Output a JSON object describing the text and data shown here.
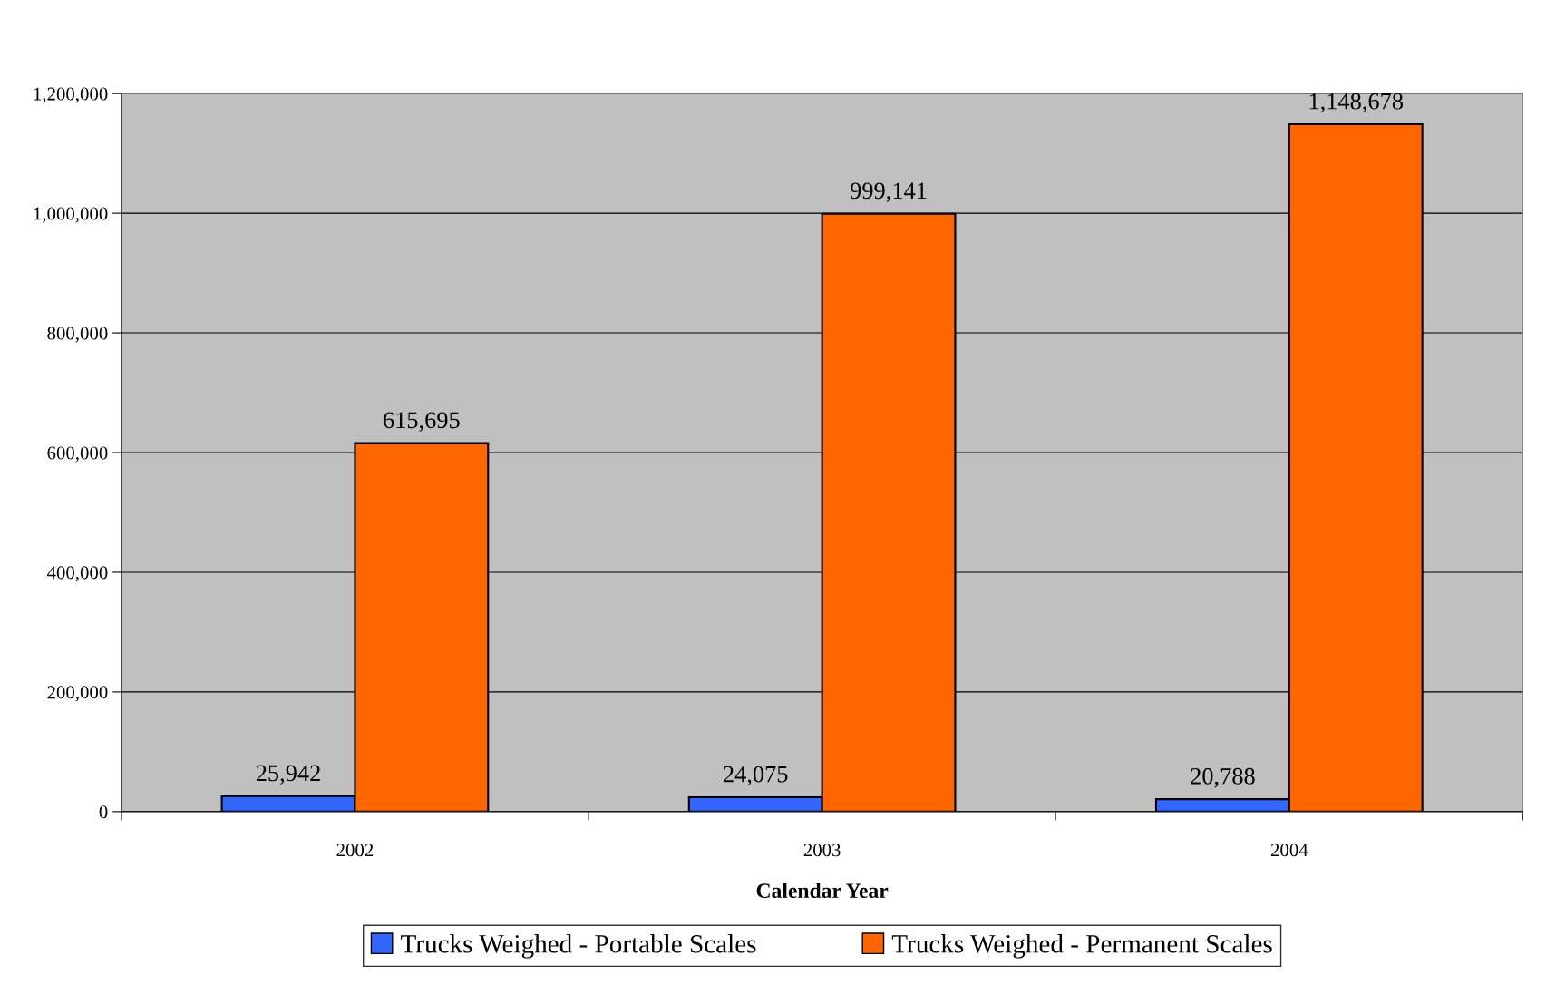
{
  "chart_data": {
    "type": "bar",
    "xlabel": "Calendar Year",
    "categories": [
      "2002",
      "2003",
      "2004"
    ],
    "series": [
      {
        "name": "Trucks Weighed - Portable Scales",
        "color": "#3366ff",
        "values": [
          25942,
          24075,
          20788
        ],
        "value_labels": [
          "25,942",
          "24,075",
          "20,788"
        ]
      },
      {
        "name": "Trucks Weighed - Permanent Scales",
        "color": "#ff6600",
        "values": [
          615695,
          999141,
          1148678
        ],
        "value_labels": [
          "615,695",
          "999,141",
          "1,148,678"
        ]
      }
    ],
    "ylim": [
      0,
      1200000
    ],
    "yticks": [
      {
        "value": 0,
        "label": "0"
      },
      {
        "value": 200000,
        "label": "200,000"
      },
      {
        "value": 400000,
        "label": "400,000"
      },
      {
        "value": 600000,
        "label": "600,000"
      },
      {
        "value": 800000,
        "label": "800,000"
      },
      {
        "value": 1000000,
        "label": "1,000,000"
      },
      {
        "value": 1200000,
        "label": "1,200,000"
      }
    ],
    "grid": "y",
    "legend": "bottom"
  }
}
